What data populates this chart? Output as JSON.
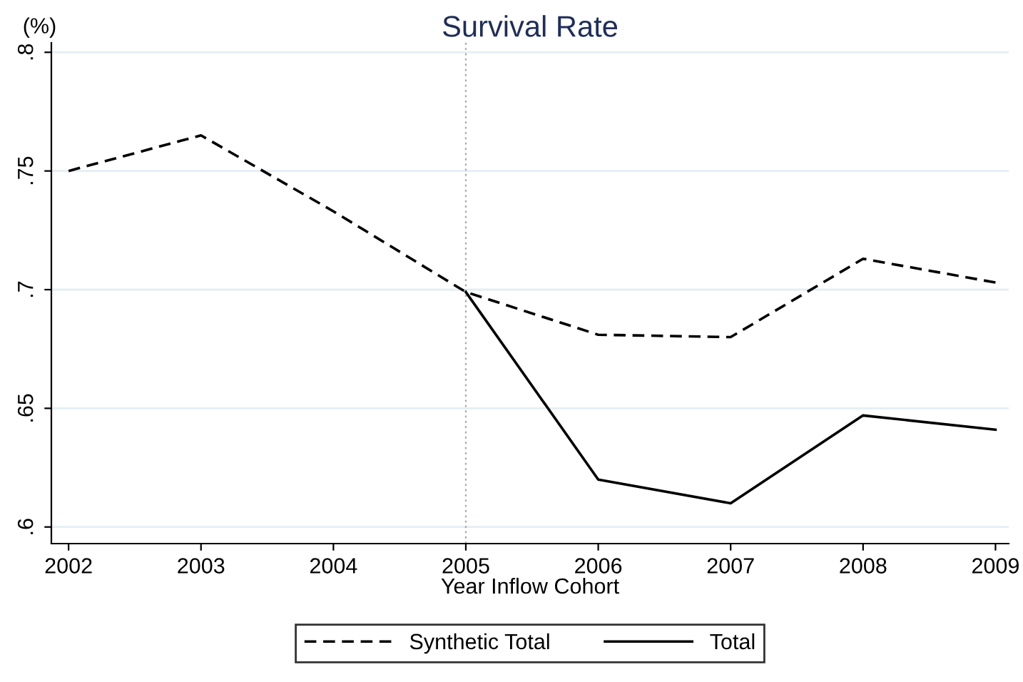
{
  "chart_data": {
    "type": "line",
    "title": "Survival Rate",
    "ylabel": "(%)",
    "xlabel": "Year Inflow Cohort",
    "x": [
      2002,
      2003,
      2004,
      2005,
      2006,
      2007,
      2008,
      2009
    ],
    "series": [
      {
        "name": "Synthetic Total",
        "color": "#000000",
        "line_style": "dashed",
        "values": [
          0.75,
          0.765,
          0.733,
          0.699,
          0.681,
          0.68,
          0.713,
          0.703
        ]
      },
      {
        "name": "Total",
        "color": "#000000",
        "line_style": "solid",
        "values": [
          null,
          null,
          null,
          0.699,
          0.62,
          0.61,
          0.647,
          0.641
        ]
      }
    ],
    "xlim": [
      2001.87,
      2009.1
    ],
    "xticks": [
      2002,
      2003,
      2004,
      2005,
      2006,
      2007,
      2008,
      2009
    ],
    "ylim": [
      0.593,
      0.804
    ],
    "yticks": [
      {
        "value": 0.6,
        "label": ".6"
      },
      {
        "value": 0.65,
        "label": ".65"
      },
      {
        "value": 0.7,
        "label": ".7"
      },
      {
        "value": 0.75,
        "label": ".75"
      },
      {
        "value": 0.8,
        "label": ".8"
      }
    ],
    "ref_lines": [
      {
        "axis": "x",
        "value": 2005,
        "color": "#aaaaaa",
        "line_style": "dotted"
      }
    ],
    "grid": "y",
    "legend": "bottom",
    "marker": "none"
  }
}
